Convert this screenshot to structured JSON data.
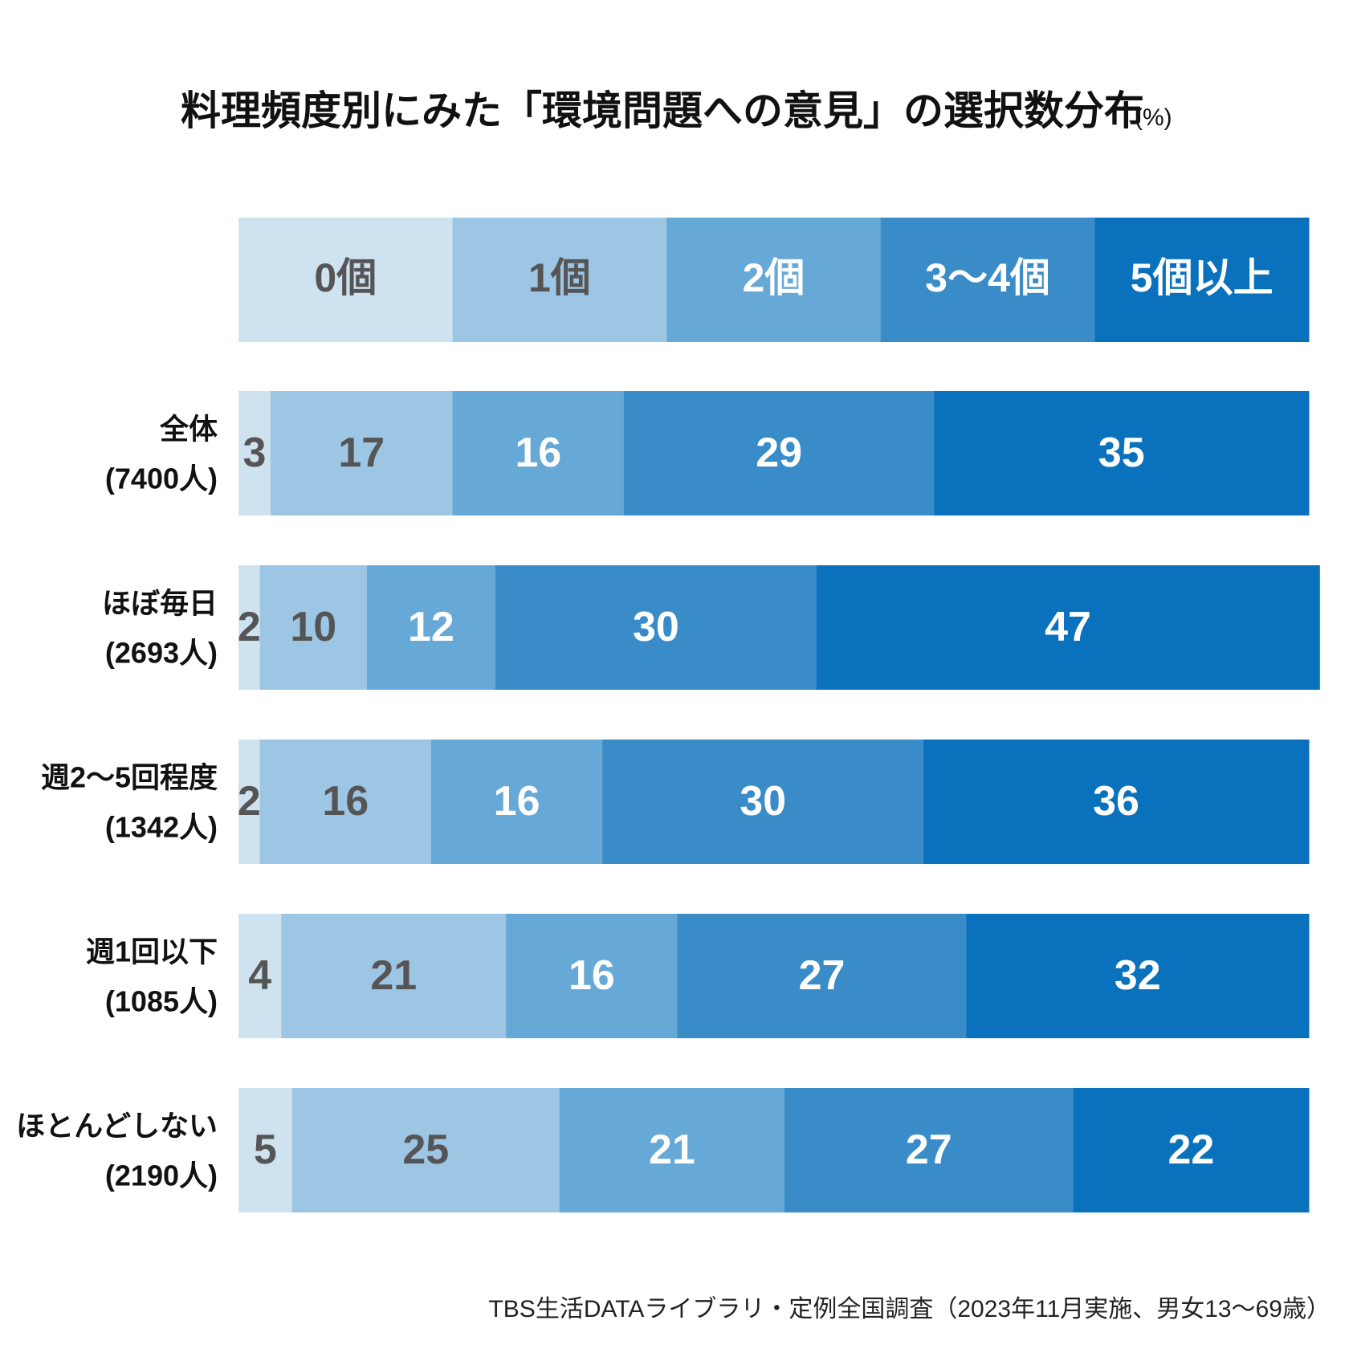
{
  "chart_data": {
    "type": "stacked-bar",
    "title": "料理頻度別にみた「環境問題への意見」の選択数分布",
    "unit": "(%)",
    "source": "TBS生活DATAライブラリ・定例全国調査（2023年11月実施、男女13〜69歳）",
    "categories": [
      [
        "全体",
        "(7400人)"
      ],
      [
        "ほぼ毎日",
        "(2693人)"
      ],
      [
        "週2〜5回程度",
        "(1342人)"
      ],
      [
        "週1回以下",
        "(1085人)"
      ],
      [
        "ほとんどしない",
        "(2190人)"
      ]
    ],
    "xlim": [
      0,
      100
    ],
    "series": [
      {
        "name": "0個",
        "color": "#cfe2f0",
        "label_color": "#555555",
        "values": [
          3,
          2,
          2,
          4,
          5
        ]
      },
      {
        "name": "1個",
        "color": "#9dc5e4",
        "label_color": "#555555",
        "values": [
          17,
          10,
          16,
          21,
          25
        ]
      },
      {
        "name": "2個",
        "color": "#66a8d6",
        "label_color": "#ffffff",
        "values": [
          16,
          12,
          16,
          16,
          21
        ]
      },
      {
        "name": "3〜4個",
        "color": "#3a8cc8",
        "label_color": "#ffffff",
        "values": [
          29,
          30,
          30,
          27,
          27
        ]
      },
      {
        "name": "5個以上",
        "color": "#0a72bc",
        "label_color": "#ffffff",
        "values": [
          35,
          47,
          36,
          32,
          22
        ]
      }
    ]
  }
}
